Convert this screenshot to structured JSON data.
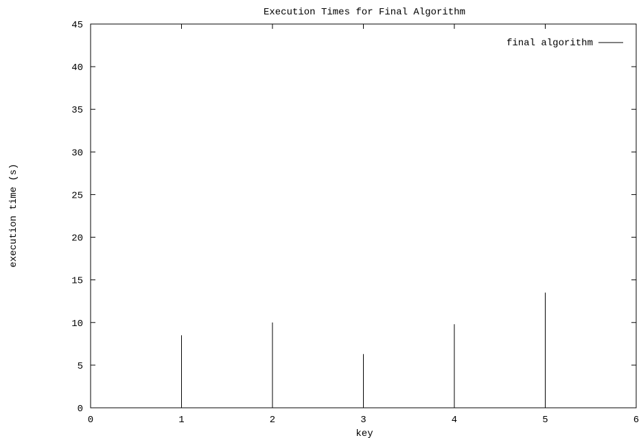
{
  "chart_data": {
    "type": "bar",
    "title": "Execution Times for Final Algorithm",
    "xlabel": "key",
    "ylabel": "execution time (s)",
    "xlim": [
      0,
      6
    ],
    "ylim": [
      0,
      45
    ],
    "x_ticks": [
      0,
      1,
      2,
      3,
      4,
      5,
      6
    ],
    "y_ticks": [
      0,
      5,
      10,
      15,
      20,
      25,
      30,
      35,
      40,
      45
    ],
    "grid": false,
    "legend_position": "top-right",
    "series": [
      {
        "name": "final algorithm",
        "color": "#000000",
        "style": "impulses",
        "x": [
          1,
          2,
          3,
          4,
          5
        ],
        "y": [
          8.5,
          10.0,
          6.3,
          9.8,
          13.5
        ]
      }
    ]
  }
}
